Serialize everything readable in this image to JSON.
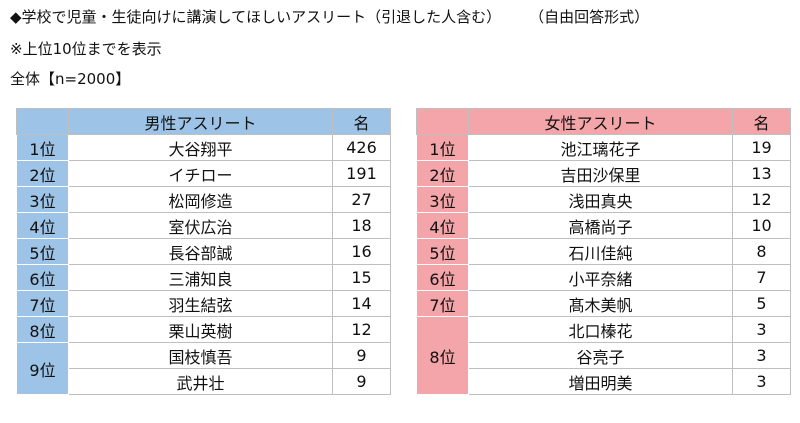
{
  "header": {
    "line1_q": "◆学校で児童・生徒向けに講演してほしいアスリート（引退した人含む）",
    "line1_format": "（自由回答形式）",
    "line2": "※上位10位までを表示",
    "line3": "全体【n=2000】"
  },
  "male": {
    "header_name": "男性アスリート",
    "header_count": "名",
    "rows": [
      {
        "rank": "1位",
        "name": "大谷翔平",
        "count": "426"
      },
      {
        "rank": "2位",
        "name": "イチロー",
        "count": "191"
      },
      {
        "rank": "3位",
        "name": "松岡修造",
        "count": "27"
      },
      {
        "rank": "4位",
        "name": "室伏広治",
        "count": "18"
      },
      {
        "rank": "5位",
        "name": "長谷部誠",
        "count": "16"
      },
      {
        "rank": "6位",
        "name": "三浦知良",
        "count": "15"
      },
      {
        "rank": "7位",
        "name": "羽生結弦",
        "count": "14"
      },
      {
        "rank": "8位",
        "name": "栗山英樹",
        "count": "12"
      },
      {
        "rank": "9位",
        "name": "国枝慎吾",
        "count": "9"
      },
      {
        "rank": "",
        "name": "武井壮",
        "count": "9"
      }
    ]
  },
  "female": {
    "header_name": "女性アスリート",
    "header_count": "名",
    "rows": [
      {
        "rank": "1位",
        "name": "池江璃花子",
        "count": "19"
      },
      {
        "rank": "2位",
        "name": "吉田沙保里",
        "count": "13"
      },
      {
        "rank": "3位",
        "name": "浅田真央",
        "count": "12"
      },
      {
        "rank": "4位",
        "name": "高橋尚子",
        "count": "10"
      },
      {
        "rank": "5位",
        "name": "石川佳純",
        "count": "8"
      },
      {
        "rank": "6位",
        "name": "小平奈緒",
        "count": "7"
      },
      {
        "rank": "7位",
        "name": "髙木美帆",
        "count": "5"
      },
      {
        "rank": "8位",
        "name": "北口榛花",
        "count": "3"
      },
      {
        "rank": "",
        "name": "谷亮子",
        "count": "3"
      },
      {
        "rank": "",
        "name": "増田明美",
        "count": "3"
      }
    ]
  }
}
